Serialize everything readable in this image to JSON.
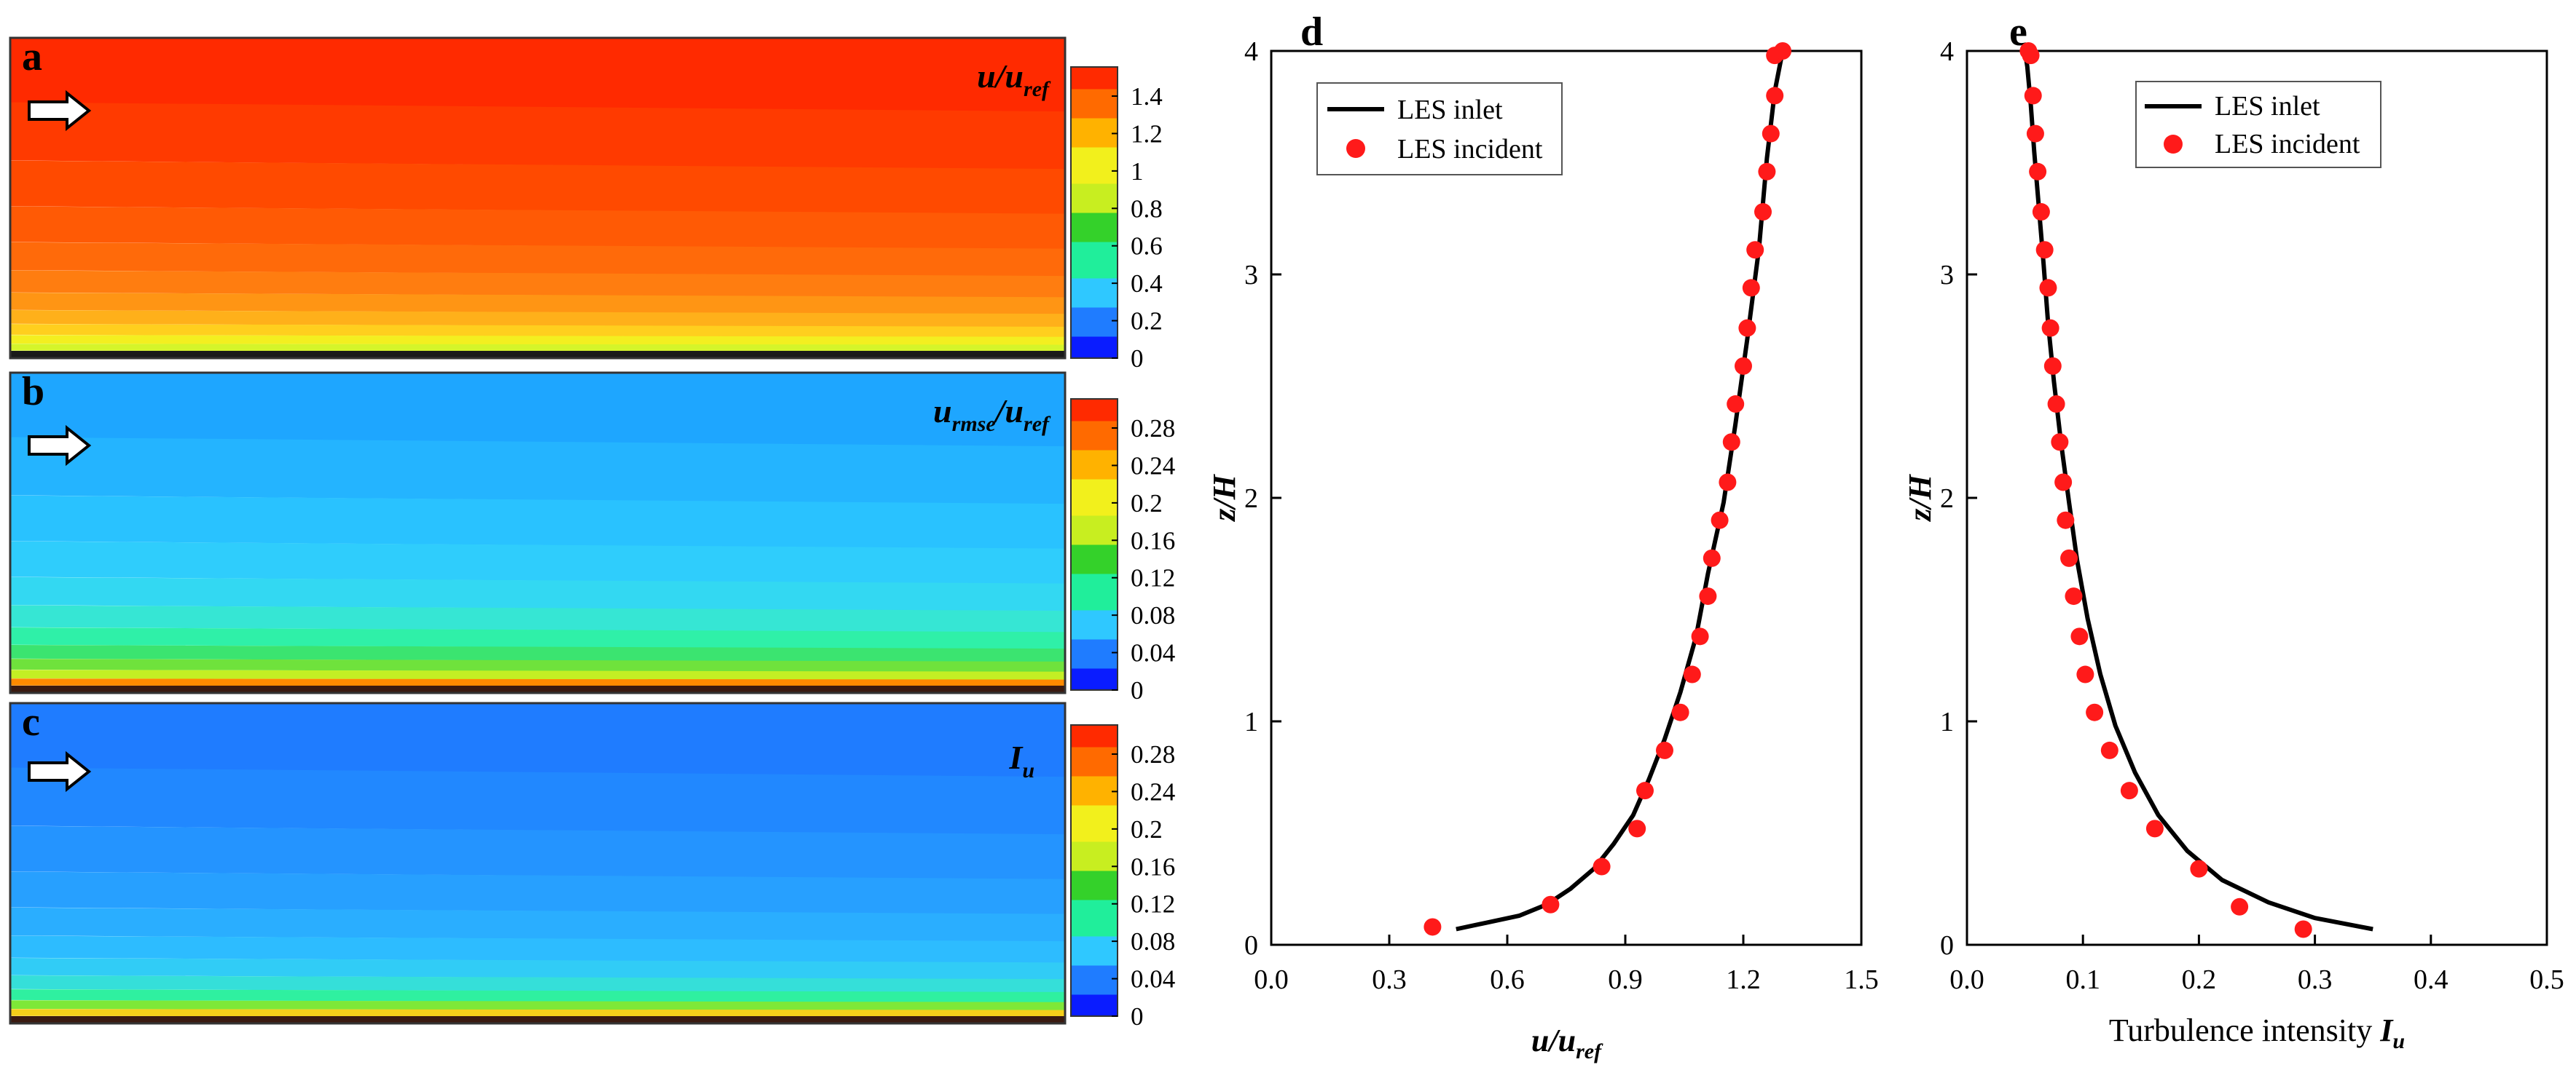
{
  "colormap": [
    "#0a1cff",
    "#1f7cff",
    "#2fc8ff",
    "#20ee9b",
    "#34d12a",
    "#c8ee20",
    "#f2f01c",
    "#ffb200",
    "#ff6a00",
    "#ff2a00"
  ],
  "contour_panels": [
    {
      "letter": "a",
      "variable": {
        "base": "u/u",
        "sub": "ref"
      },
      "colorbar_ticks": [
        "1.4",
        "1.2",
        "1",
        "0.8",
        "0.6",
        "0.4",
        "0.2",
        "0"
      ],
      "field_colors": [
        "#ff2a00",
        "#ff3a00",
        "#ff4a00",
        "#ff5a05",
        "#ff6a0a",
        "#ff7d10",
        "#ff9514",
        "#ffb01a",
        "#ffcf1e",
        "#f3ef20",
        "#d5f52a"
      ],
      "wall_color": "#1a1a1a"
    },
    {
      "letter": "b",
      "variable": {
        "base": "u",
        "sub": "rmse",
        "tail": "/u",
        "sub2": "ref"
      },
      "colorbar_ticks": [
        "0.28",
        "0.24",
        "0.2",
        "0.16",
        "0.12",
        "0.08",
        "0.04",
        "0"
      ],
      "field_colors": [
        "#1ea6ff",
        "#24b4ff",
        "#29c2ff",
        "#2fcdfc",
        "#33d8f2",
        "#36e6d4",
        "#2ff0a8",
        "#3be470",
        "#6fe23c",
        "#c3ef24",
        "#ff8a00"
      ],
      "wall_color": "#3a1a10"
    },
    {
      "letter": "c",
      "variable": {
        "base": "I",
        "sub": "u"
      },
      "colorbar_ticks": [
        "0.28",
        "0.24",
        "0.2",
        "0.16",
        "0.12",
        "0.08",
        "0.04",
        "0"
      ],
      "field_colors": [
        "#1f7cff",
        "#2188ff",
        "#2494ff",
        "#27a0ff",
        "#2aaeff",
        "#2dbcff",
        "#31ccf6",
        "#35dfd9",
        "#2ff0a0",
        "#7ee838",
        "#f5cf1a"
      ],
      "wall_color": "#3a1a10"
    }
  ],
  "chart_data": [
    {
      "type": "line",
      "panel": "d",
      "xlabel": {
        "base": "u/u",
        "sub": "ref"
      },
      "ylabel": "z/H",
      "xlim": [
        0.0,
        1.5
      ],
      "ylim": [
        0,
        4
      ],
      "xticks": [
        "0.0",
        "0.3",
        "0.6",
        "0.9",
        "1.2",
        "1.5"
      ],
      "yticks": [
        "0",
        "1",
        "2",
        "3",
        "4"
      ],
      "legend": {
        "position": "top-left",
        "entries": [
          "LES inlet",
          "LES incident"
        ]
      },
      "series": [
        {
          "name": "LES inlet",
          "style": "line",
          "color": "#000000",
          "x": [
            0.47,
            0.55,
            0.63,
            0.7,
            0.76,
            0.82,
            0.87,
            0.92,
            0.96,
            1.0,
            1.04,
            1.08,
            1.11,
            1.15,
            1.18,
            1.21,
            1.24,
            1.26,
            1.28,
            1.3
          ],
          "y": [
            0.07,
            0.1,
            0.13,
            0.18,
            0.25,
            0.34,
            0.45,
            0.58,
            0.74,
            0.92,
            1.13,
            1.38,
            1.66,
            1.98,
            2.33,
            2.71,
            3.12,
            3.52,
            3.82,
            4.0
          ]
        },
        {
          "name": "LES incident",
          "style": "scatter",
          "color": "#ff1a1a",
          "x": [
            0.41,
            0.71,
            0.84,
            0.93,
            0.95,
            1.0,
            1.04,
            1.07,
            1.09,
            1.11,
            1.12,
            1.14,
            1.16,
            1.17,
            1.18,
            1.2,
            1.21,
            1.22,
            1.23,
            1.25,
            1.26,
            1.27,
            1.28,
            1.28,
            1.3
          ],
          "y": [
            0.08,
            0.18,
            0.35,
            0.52,
            0.69,
            0.87,
            1.04,
            1.21,
            1.38,
            1.56,
            1.73,
            1.9,
            2.07,
            2.25,
            2.42,
            2.59,
            2.76,
            2.94,
            3.11,
            3.28,
            3.46,
            3.63,
            3.8,
            3.98,
            4.0
          ]
        }
      ]
    },
    {
      "type": "line",
      "panel": "e",
      "xlabel": {
        "base": "Turbulence intensity ",
        "italic": "I",
        "sub": "u"
      },
      "ylabel": "z/H",
      "xlim": [
        0.0,
        0.5
      ],
      "ylim": [
        0,
        4
      ],
      "xticks": [
        "0.0",
        "0.1",
        "0.2",
        "0.3",
        "0.4",
        "0.5"
      ],
      "yticks": [
        "0",
        "1",
        "2",
        "3",
        "4"
      ],
      "legend": {
        "position": "top-right",
        "entries": [
          "LES inlet",
          "LES incident"
        ]
      },
      "series": [
        {
          "name": "LES inlet",
          "style": "line",
          "color": "#000000",
          "x": [
            0.35,
            0.3,
            0.26,
            0.22,
            0.19,
            0.165,
            0.145,
            0.128,
            0.115,
            0.104,
            0.095,
            0.088,
            0.081,
            0.075,
            0.07,
            0.066,
            0.062,
            0.058,
            0.055,
            0.052,
            0.05
          ],
          "y": [
            0.07,
            0.12,
            0.19,
            0.29,
            0.42,
            0.58,
            0.77,
            0.98,
            1.21,
            1.46,
            1.72,
            1.98,
            2.25,
            2.52,
            2.78,
            3.05,
            3.3,
            3.55,
            3.76,
            3.93,
            4.0
          ]
        },
        {
          "name": "LES incident",
          "style": "scatter",
          "color": "#ff1a1a",
          "x": [
            0.29,
            0.235,
            0.2,
            0.162,
            0.14,
            0.123,
            0.11,
            0.102,
            0.097,
            0.092,
            0.088,
            0.085,
            0.083,
            0.08,
            0.077,
            0.074,
            0.072,
            0.07,
            0.067,
            0.064,
            0.061,
            0.059,
            0.057,
            0.055,
            0.053
          ],
          "y": [
            0.07,
            0.17,
            0.34,
            0.52,
            0.69,
            0.87,
            1.04,
            1.21,
            1.38,
            1.56,
            1.73,
            1.9,
            2.07,
            2.25,
            2.42,
            2.59,
            2.76,
            2.94,
            3.11,
            3.28,
            3.46,
            3.63,
            3.8,
            3.98,
            4.0
          ]
        }
      ]
    }
  ]
}
